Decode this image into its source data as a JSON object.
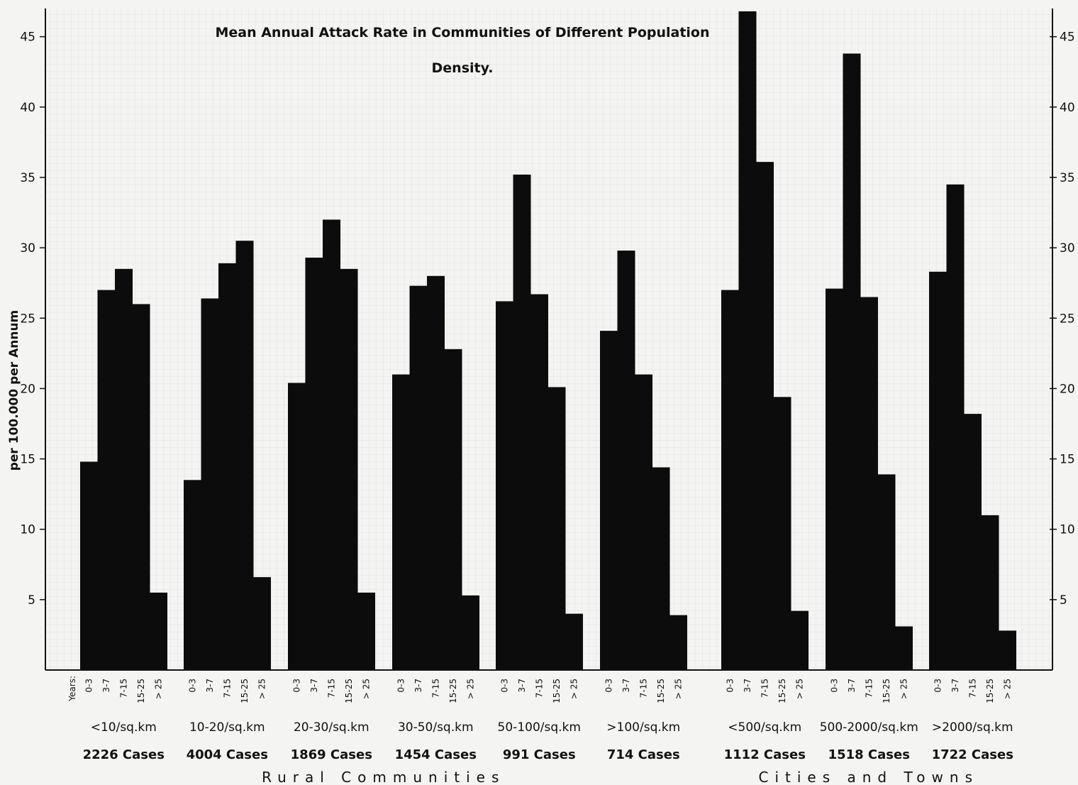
{
  "chart_data": {
    "type": "bar",
    "title_lines": [
      "Mean Annual Attack Rate in Communities of Different Population",
      "Density."
    ],
    "ylabel": "per 100.000 per Annum",
    "age_axis_label": "Years:",
    "ylim": [
      0,
      47
    ],
    "yticks": [
      5,
      10,
      15,
      20,
      25,
      30,
      35,
      40,
      45
    ],
    "age_groups": [
      "0-3",
      "3-7",
      "7-15",
      "15-25",
      "> 25"
    ],
    "groups": [
      {
        "density": "<10/sq.km",
        "cases": "2226 Cases",
        "values": [
          14.8,
          27.0,
          28.5,
          26.0,
          5.5
        ]
      },
      {
        "density": "10-20/sq.km",
        "cases": "4004 Cases",
        "values": [
          13.5,
          26.4,
          28.9,
          30.5,
          6.6
        ]
      },
      {
        "density": "20-30/sq.km",
        "cases": "1869 Cases",
        "values": [
          20.4,
          29.3,
          32.0,
          28.5,
          5.5
        ]
      },
      {
        "density": "30-50/sq.km",
        "cases": "1454 Cases",
        "values": [
          21.0,
          27.3,
          28.0,
          22.8,
          5.3
        ]
      },
      {
        "density": "50-100/sq.km",
        "cases": "991 Cases",
        "values": [
          26.2,
          35.2,
          26.7,
          20.1,
          4.0
        ]
      },
      {
        "density": ">100/sq.km",
        "cases": "714 Cases",
        "values": [
          24.1,
          29.8,
          21.0,
          14.4,
          3.9
        ]
      },
      {
        "density": "<500/sq.km",
        "cases": "1112 Cases",
        "values": [
          27.0,
          46.8,
          36.1,
          19.4,
          4.2
        ]
      },
      {
        "density": "500-2000/sq.km",
        "cases": "1518 Cases",
        "values": [
          27.1,
          43.8,
          26.5,
          13.9,
          3.1
        ]
      },
      {
        "density": ">2000/sq.km",
        "cases": "1722 Cases",
        "values": [
          28.3,
          34.5,
          18.2,
          11.0,
          2.8
        ]
      }
    ],
    "sections": [
      {
        "label": "Rural Communities",
        "group_indices": [
          0,
          1,
          2,
          3,
          4,
          5
        ]
      },
      {
        "label": "Cities and Towns",
        "group_indices": [
          6,
          7,
          8
        ]
      }
    ],
    "colors": {
      "bar": "#0c0c0c",
      "background": "#f4f4f2"
    }
  }
}
